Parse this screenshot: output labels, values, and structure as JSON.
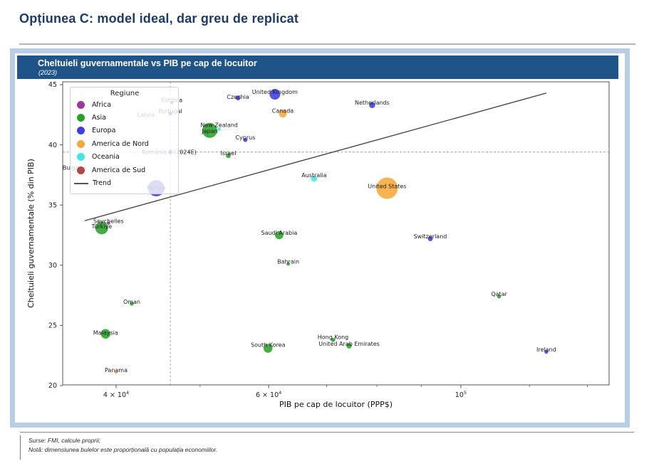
{
  "page": {
    "title": "Opțiunea C: model ideal, dar greu de replicat"
  },
  "panel": {
    "header": {
      "title": "Cheltuieli guvernamentale vs PIB pe cap de locuitor",
      "subtitle": "(2023)"
    }
  },
  "footer": {
    "source": "Surse: FMI, calcule proprii;",
    "note": "Notă: dimensiunea bulelor este proporțională cu populația economiilor."
  },
  "chart_data": {
    "type": "scatter",
    "title": "Cheltuieli guvernamentale vs PIB pe cap de locuitor",
    "subtitle": "(2023)",
    "xlabel": "PIB pe cap de locuitor (PPP$)",
    "ylabel": "Cheltuieli guvernamentale (% din PIB)",
    "x_scale": "log",
    "xlim": [
      34700,
      148300
    ],
    "ylim": [
      20,
      45
    ],
    "y_ticks": [
      45,
      40,
      35,
      30,
      25,
      20
    ],
    "x_ticks": [
      {
        "value": 40000,
        "base": "4 × 10",
        "exp": "4"
      },
      {
        "value": 60000,
        "base": "6 × 10",
        "exp": "4"
      },
      {
        "value": 100000,
        "base": "10",
        "exp": "5"
      }
    ],
    "x_minor_ticks": [
      50000,
      70000,
      80000,
      90000,
      120000,
      140000
    ],
    "region_colors": {
      "Africa": "#9a3a9a",
      "Asia": "#2ca02c",
      "Europa": "#3d3de0",
      "America de Nord": "#f7a83b",
      "Oceania": "#47e4e4",
      "America de Sud": "#ad4a48"
    },
    "legend": {
      "title": "Regiune",
      "position": "upper-left",
      "items": [
        {
          "label": "Africa",
          "type": "dot",
          "color": "#9a3a9a"
        },
        {
          "label": "Asia",
          "type": "dot",
          "color": "#2ca02c"
        },
        {
          "label": "Europa",
          "type": "dot",
          "color": "#3d3de0"
        },
        {
          "label": "America de Nord",
          "type": "dot",
          "color": "#f7a83b"
        },
        {
          "label": "Oceania",
          "type": "dot",
          "color": "#47e4e4"
        },
        {
          "label": "America de Sud",
          "type": "dot",
          "color": "#ad4a48"
        },
        {
          "label": "Trend",
          "type": "line",
          "color": "#555555"
        }
      ]
    },
    "points": [
      {
        "name": "United Kingdom",
        "region": "Europa",
        "gdp": 61000,
        "spend": 44.2,
        "r": 7.5
      },
      {
        "name": "Czechia",
        "region": "Europa",
        "gdp": 55300,
        "spend": 43.9,
        "r": 3.4,
        "dy": -1.5
      },
      {
        "name": "Estonia",
        "region": "Europa",
        "gdp": 46400,
        "spend": 43.5,
        "r": 2.0
      },
      {
        "name": "Portugal",
        "region": "Europa",
        "gdp": 46200,
        "spend": 42.6,
        "r": 2.8
      },
      {
        "name": "Netherlands",
        "region": "Europa",
        "gdp": 79000,
        "spend": 43.3,
        "r": 4.2
      },
      {
        "name": "Cyprus",
        "region": "Europa",
        "gdp": 56400,
        "spend": 40.4,
        "r": 2.8
      },
      {
        "name": "Russia",
        "region": "Europa",
        "gdp": 44500,
        "spend": 36.4,
        "r": 11.5,
        "dy": -1
      },
      {
        "name": "Switzerland",
        "region": "Europa",
        "gdp": 92200,
        "spend": 32.2,
        "r": 3.4
      },
      {
        "name": "Ireland",
        "region": "Europa",
        "gdp": 125500,
        "spend": 22.8,
        "r": 2.7
      },
      {
        "name": "România",
        "region": "Europa",
        "gdp": 46200,
        "spend": 39.4,
        "r": 3.8,
        "marker": "diamond",
        "show_label": false
      },
      {
        "name": "Japan",
        "region": "Asia",
        "gdp": 51300,
        "spend": 41.2,
        "r": 10.5,
        "dy": 1
      },
      {
        "name": "Israel",
        "region": "Asia",
        "gdp": 53900,
        "spend": 39.1,
        "r": 3.4
      },
      {
        "name": "Türkiye",
        "region": "Asia",
        "gdp": 38500,
        "spend": 33.1,
        "r": 9.0,
        "dy": -2
      },
      {
        "name": "Saudi Arabia",
        "region": "Asia",
        "gdp": 61700,
        "spend": 32.5,
        "r": 5.8
      },
      {
        "name": "Bahrain",
        "region": "Asia",
        "gdp": 63200,
        "spend": 30.1,
        "r": 2.4
      },
      {
        "name": "Qatar",
        "region": "Asia",
        "gdp": 110700,
        "spend": 27.4,
        "r": 2.7
      },
      {
        "name": "Oman",
        "region": "Asia",
        "gdp": 41700,
        "spend": 26.8,
        "r": 2.7,
        "dy": -2.5
      },
      {
        "name": "Malaysia",
        "region": "Asia",
        "gdp": 38900,
        "spend": 24.3,
        "r": 6.7,
        "dy": -1.5
      },
      {
        "name": "Hong Kong",
        "region": "Asia",
        "gdp": 71200,
        "spend": 23.8,
        "r": 3.0,
        "dy": -4
      },
      {
        "name": "United Arab Emirates",
        "region": "Asia",
        "gdp": 74300,
        "spend": 23.3,
        "r": 3.7,
        "dy": -3
      },
      {
        "name": "South Korea",
        "region": "Asia",
        "gdp": 59900,
        "spend": 23.1,
        "r": 6.3,
        "dy": -5
      },
      {
        "name": "Canada",
        "region": "America de Nord",
        "gdp": 62300,
        "spend": 42.6,
        "r": 5.5,
        "dy": -4
      },
      {
        "name": "United States",
        "region": "America de Nord",
        "gdp": 82200,
        "spend": 36.4,
        "r": 15.0,
        "dy": -3
      },
      {
        "name": "Panama",
        "region": "America de Nord",
        "gdp": 40000,
        "spend": 21.1,
        "r": 2.0,
        "dy": -3
      },
      {
        "name": "New Zealand",
        "region": "Oceania",
        "gdp": 52600,
        "spend": 41.3,
        "r": 2.3,
        "dy": -6
      },
      {
        "name": "Australia",
        "region": "Oceania",
        "gdp": 67700,
        "spend": 37.2,
        "r": 4.2,
        "dy": -5
      },
      {
        "name": "Seychelles",
        "region": "Africa",
        "gdp": 39200,
        "spend": 33.5,
        "r": 2.3,
        "dy": -3
      }
    ],
    "faded_labels": [
      {
        "name": "Latvia",
        "gdp": 43300,
        "spend": 42.5
      },
      {
        "name": "Bulgaria",
        "gdp": 35800,
        "spend": 38.1
      }
    ],
    "reference": {
      "gdp": 46200,
      "spend": 39.4,
      "label_country": "România",
      "label_visible": "(2024E)"
    },
    "trend": {
      "x1": 36800,
      "y1": 33.7,
      "x2": 125500,
      "y2": 44.3
    }
  }
}
